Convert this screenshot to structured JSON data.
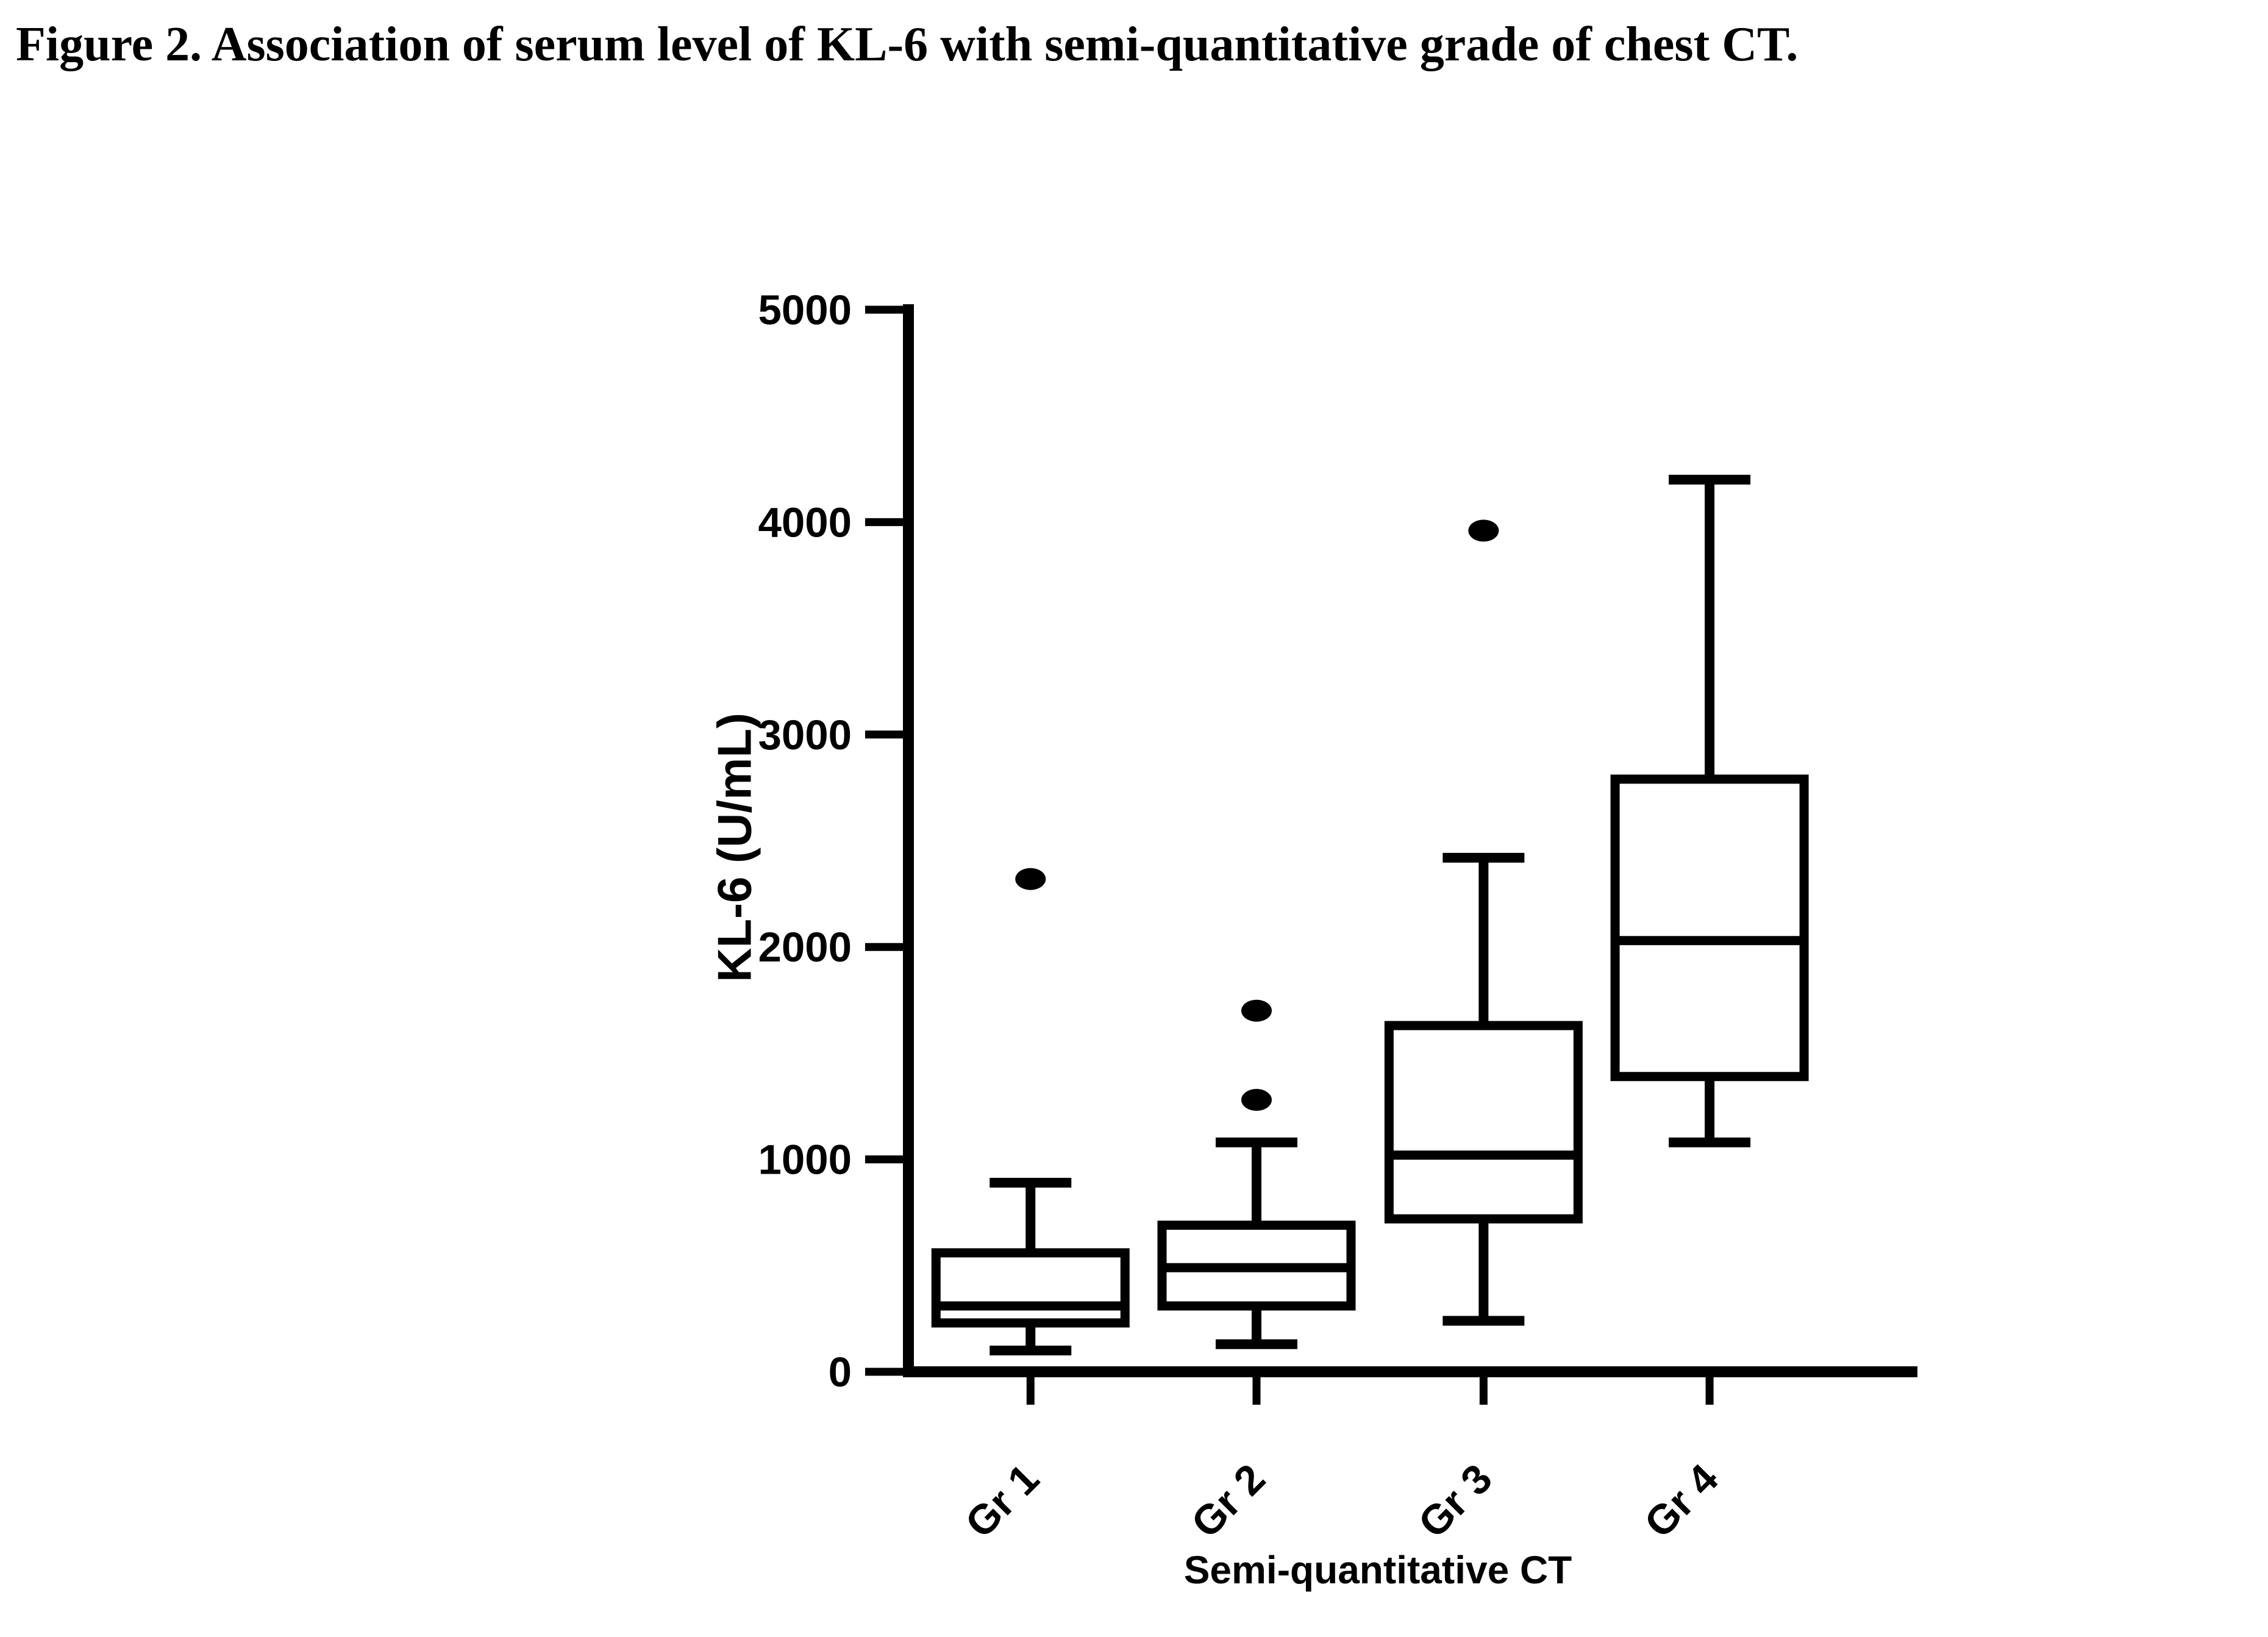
{
  "page": {
    "figure_title": "Figure 2. Association of serum level of KL-6 with semi-quantitative grade of chest CT."
  },
  "colors": {
    "foreground": "#000000",
    "background": "#ffffff"
  },
  "chart_data": {
    "type": "boxplot",
    "title": "Figure 2. Association of serum level of KL-6 with semi-quantitative grade of chest CT.",
    "xlabel": "Semi-quantitative CT",
    "ylabel": "KL-6 (U/mL)",
    "ylim": [
      0,
      5000
    ],
    "yticks": [
      0,
      1000,
      2000,
      3000,
      4000,
      5000
    ],
    "grid": false,
    "legend": false,
    "categories": [
      "Gr 1",
      "Gr 2",
      "Gr 3",
      "Gr 4"
    ],
    "series": [
      {
        "category": "Gr 1",
        "whisker_low": 100,
        "q1": 230,
        "median": 310,
        "q3": 560,
        "whisker_high": 890,
        "outliers": [
          2320
        ]
      },
      {
        "category": "Gr 2",
        "whisker_low": 130,
        "q1": 310,
        "median": 490,
        "q3": 690,
        "whisker_high": 1080,
        "outliers": [
          1280,
          1700
        ]
      },
      {
        "category": "Gr 3",
        "whisker_low": 240,
        "q1": 720,
        "median": 1020,
        "q3": 1630,
        "whisker_high": 2420,
        "outliers": [
          3960
        ]
      },
      {
        "category": "Gr 4",
        "whisker_low": 1080,
        "q1": 1390,
        "median": 2030,
        "q3": 2790,
        "whisker_high": 4200,
        "outliers": []
      }
    ]
  }
}
